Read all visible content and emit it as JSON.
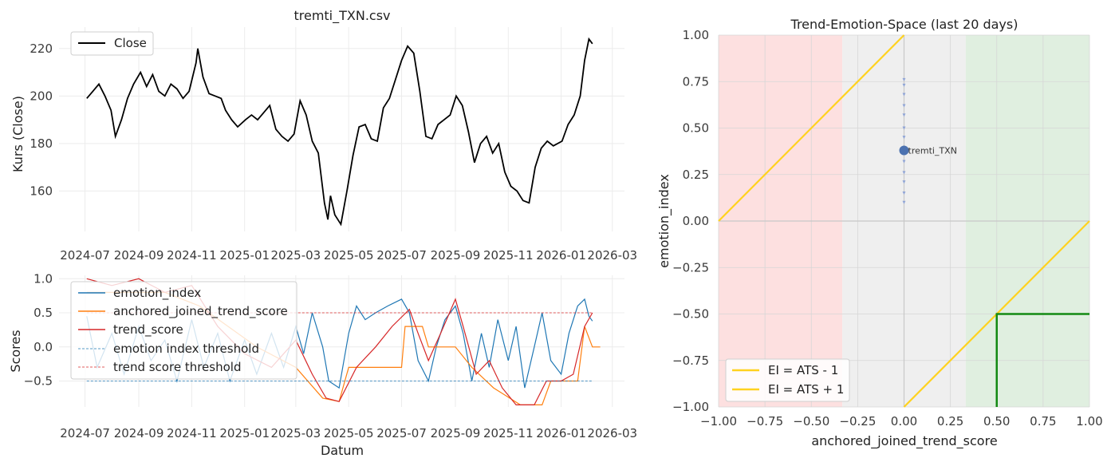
{
  "chart_data": [
    {
      "id": "price",
      "type": "line",
      "title": "tremti_TXN.csv",
      "xlabel": "",
      "ylabel": "Kurs (Close)",
      "x_range": [
        "2024-06-01",
        "2026-03-15"
      ],
      "ylim": [
        143,
        229
      ],
      "yticks": [
        "160",
        "180",
        "200",
        "220"
      ],
      "xticks": [
        "2024-07",
        "2024-09",
        "2024-11",
        "2025-01",
        "2025-03",
        "2025-05",
        "2025-07",
        "2025-09",
        "2025-11",
        "2026-01",
        "2026-03"
      ],
      "grid": true,
      "legend": "top-left",
      "series": [
        {
          "name": "Close",
          "color": "#000000",
          "points": [
            [
              "2024-07-03",
              199
            ],
            [
              "2024-07-10",
              202
            ],
            [
              "2024-07-17",
              205
            ],
            [
              "2024-07-24",
              200
            ],
            [
              "2024-07-31",
              194
            ],
            [
              "2024-08-05",
              183
            ],
            [
              "2024-08-12",
              190
            ],
            [
              "2024-08-19",
              199
            ],
            [
              "2024-08-26",
              205
            ],
            [
              "2024-09-03",
              210
            ],
            [
              "2024-09-10",
              204
            ],
            [
              "2024-09-17",
              209
            ],
            [
              "2024-09-24",
              202
            ],
            [
              "2024-10-01",
              200
            ],
            [
              "2024-10-08",
              205
            ],
            [
              "2024-10-15",
              203
            ],
            [
              "2024-10-22",
              199
            ],
            [
              "2024-10-29",
              202
            ],
            [
              "2024-11-06",
              214
            ],
            [
              "2024-11-08",
              220
            ],
            [
              "2024-11-14",
              208
            ],
            [
              "2024-11-21",
              201
            ],
            [
              "2024-11-28",
              200
            ],
            [
              "2024-12-05",
              199
            ],
            [
              "2024-12-10",
              194
            ],
            [
              "2024-12-17",
              190
            ],
            [
              "2024-12-24",
              187
            ],
            [
              "2025-01-02",
              190
            ],
            [
              "2025-01-09",
              192
            ],
            [
              "2025-01-16",
              190
            ],
            [
              "2025-01-23",
              193
            ],
            [
              "2025-01-30",
              196
            ],
            [
              "2025-02-06",
              186
            ],
            [
              "2025-02-13",
              183
            ],
            [
              "2025-02-20",
              181
            ],
            [
              "2025-02-27",
              184
            ],
            [
              "2025-03-06",
              198
            ],
            [
              "2025-03-13",
              192
            ],
            [
              "2025-03-20",
              181
            ],
            [
              "2025-03-27",
              176
            ],
            [
              "2025-04-03",
              155
            ],
            [
              "2025-04-07",
              148
            ],
            [
              "2025-04-10",
              158
            ],
            [
              "2025-04-15",
              150
            ],
            [
              "2025-04-22",
              146
            ],
            [
              "2025-04-29",
              160
            ],
            [
              "2025-05-06",
              175
            ],
            [
              "2025-05-13",
              187
            ],
            [
              "2025-05-20",
              188
            ],
            [
              "2025-05-27",
              182
            ],
            [
              "2025-06-03",
              181
            ],
            [
              "2025-06-10",
              195
            ],
            [
              "2025-06-17",
              199
            ],
            [
              "2025-06-24",
              207
            ],
            [
              "2025-07-01",
              215
            ],
            [
              "2025-07-08",
              221
            ],
            [
              "2025-07-15",
              218
            ],
            [
              "2025-07-22",
              202
            ],
            [
              "2025-07-29",
              183
            ],
            [
              "2025-08-05",
              182
            ],
            [
              "2025-08-12",
              188
            ],
            [
              "2025-08-19",
              190
            ],
            [
              "2025-08-26",
              192
            ],
            [
              "2025-09-02",
              200
            ],
            [
              "2025-09-09",
              196
            ],
            [
              "2025-09-16",
              185
            ],
            [
              "2025-09-23",
              172
            ],
            [
              "2025-09-30",
              180
            ],
            [
              "2025-10-07",
              183
            ],
            [
              "2025-10-14",
              176
            ],
            [
              "2025-10-21",
              180
            ],
            [
              "2025-10-28",
              168
            ],
            [
              "2025-11-04",
              162
            ],
            [
              "2025-11-11",
              160
            ],
            [
              "2025-11-18",
              156
            ],
            [
              "2025-11-25",
              155
            ],
            [
              "2025-12-02",
              170
            ],
            [
              "2025-12-09",
              178
            ],
            [
              "2025-12-16",
              181
            ],
            [
              "2025-12-23",
              179
            ],
            [
              "2026-01-02",
              181
            ],
            [
              "2026-01-09",
              188
            ],
            [
              "2026-01-16",
              192
            ],
            [
              "2026-01-23",
              200
            ],
            [
              "2026-01-28",
              215
            ],
            [
              "2026-02-02",
              224
            ],
            [
              "2026-02-06",
              222
            ]
          ]
        }
      ]
    },
    {
      "id": "scores",
      "type": "line",
      "title": "",
      "xlabel": "Datum",
      "ylabel": "Scores",
      "x_range": [
        "2024-06-01",
        "2026-03-15"
      ],
      "ylim": [
        -0.88,
        1.05
      ],
      "yticks": [
        "−0.5",
        "0.0",
        "0.5",
        "1.0"
      ],
      "ytick_values": [
        -0.5,
        0,
        0.5,
        1
      ],
      "xticks": [
        "2024-07",
        "2024-09",
        "2024-11",
        "2025-01",
        "2025-03",
        "2025-05",
        "2025-07",
        "2025-09",
        "2025-11",
        "2026-01",
        "2026-03"
      ],
      "grid": true,
      "legend": "top-left",
      "series": [
        {
          "name": "emotion_index",
          "color": "#1f77b4",
          "points": [
            [
              "2024-07-03",
              0.45
            ],
            [
              "2024-07-15",
              -0.3
            ],
            [
              "2024-08-01",
              0.2
            ],
            [
              "2024-08-15",
              -0.4
            ],
            [
              "2024-09-01",
              0.3
            ],
            [
              "2024-09-15",
              -0.2
            ],
            [
              "2024-10-01",
              0.1
            ],
            [
              "2024-10-15",
              -0.5
            ],
            [
              "2024-11-01",
              0.4
            ],
            [
              "2024-11-15",
              -0.3
            ],
            [
              "2024-12-01",
              0.2
            ],
            [
              "2024-12-15",
              -0.5
            ],
            [
              "2025-01-01",
              0.1
            ],
            [
              "2025-01-15",
              -0.4
            ],
            [
              "2025-02-01",
              0.2
            ],
            [
              "2025-02-15",
              -0.3
            ],
            [
              "2025-03-01",
              0.3
            ],
            [
              "2025-03-10",
              -0.1
            ],
            [
              "2025-03-20",
              0.5
            ],
            [
              "2025-04-01",
              0.0
            ],
            [
              "2025-04-08",
              -0.5
            ],
            [
              "2025-04-20",
              -0.6
            ],
            [
              "2025-05-01",
              0.2
            ],
            [
              "2025-05-10",
              0.6
            ],
            [
              "2025-05-20",
              0.4
            ],
            [
              "2025-06-01",
              0.5
            ],
            [
              "2025-06-15",
              0.6
            ],
            [
              "2025-07-01",
              0.7
            ],
            [
              "2025-07-10",
              0.5
            ],
            [
              "2025-07-20",
              -0.2
            ],
            [
              "2025-08-01",
              -0.5
            ],
            [
              "2025-08-10",
              0.0
            ],
            [
              "2025-08-20",
              0.4
            ],
            [
              "2025-09-01",
              0.6
            ],
            [
              "2025-09-10",
              0.2
            ],
            [
              "2025-09-20",
              -0.5
            ],
            [
              "2025-10-01",
              0.2
            ],
            [
              "2025-10-10",
              -0.3
            ],
            [
              "2025-10-20",
              0.4
            ],
            [
              "2025-11-01",
              -0.2
            ],
            [
              "2025-11-10",
              0.3
            ],
            [
              "2025-11-20",
              -0.6
            ],
            [
              "2025-12-01",
              0.0
            ],
            [
              "2025-12-10",
              0.5
            ],
            [
              "2025-12-20",
              -0.2
            ],
            [
              "2026-01-01",
              -0.4
            ],
            [
              "2026-01-10",
              0.2
            ],
            [
              "2026-01-20",
              0.6
            ],
            [
              "2026-01-28",
              0.7
            ],
            [
              "2026-02-02",
              0.45
            ],
            [
              "2026-02-06",
              0.38
            ]
          ]
        },
        {
          "name": "anchored_joined_trend_score",
          "color": "#ff7f0e",
          "points": [
            [
              "2024-07-03",
              0.8
            ],
            [
              "2024-10-01",
              0.8
            ],
            [
              "2024-11-10",
              0.6
            ],
            [
              "2025-01-15",
              0.0
            ],
            [
              "2025-03-01",
              -0.3
            ],
            [
              "2025-04-01",
              -0.75
            ],
            [
              "2025-04-20",
              -0.8
            ],
            [
              "2025-05-01",
              -0.3
            ],
            [
              "2025-05-10",
              -0.3
            ],
            [
              "2025-06-01",
              -0.3
            ],
            [
              "2025-07-01",
              -0.3
            ],
            [
              "2025-07-05",
              0.3
            ],
            [
              "2025-07-25",
              0.3
            ],
            [
              "2025-08-01",
              0.0
            ],
            [
              "2025-09-01",
              0.0
            ],
            [
              "2025-09-20",
              -0.3
            ],
            [
              "2025-10-15",
              -0.6
            ],
            [
              "2025-11-15",
              -0.85
            ],
            [
              "2025-12-10",
              -0.85
            ],
            [
              "2025-12-20",
              -0.5
            ],
            [
              "2026-01-20",
              -0.5
            ],
            [
              "2026-01-28",
              0.3
            ],
            [
              "2026-02-06",
              0.0
            ],
            [
              "2026-02-15",
              0.0
            ]
          ]
        },
        {
          "name": "trend_score",
          "color": "#d62728",
          "points": [
            [
              "2024-07-03",
              1.0
            ],
            [
              "2024-08-01",
              0.9
            ],
            [
              "2024-09-01",
              1.0
            ],
            [
              "2024-10-01",
              0.8
            ],
            [
              "2024-11-01",
              0.9
            ],
            [
              "2024-12-01",
              0.3
            ],
            [
              "2025-01-01",
              -0.1
            ],
            [
              "2025-02-01",
              -0.3
            ],
            [
              "2025-03-01",
              0.1
            ],
            [
              "2025-03-20",
              -0.4
            ],
            [
              "2025-04-05",
              -0.75
            ],
            [
              "2025-04-20",
              -0.8
            ],
            [
              "2025-05-10",
              -0.3
            ],
            [
              "2025-06-01",
              0.0
            ],
            [
              "2025-06-20",
              0.3
            ],
            [
              "2025-07-10",
              0.55
            ],
            [
              "2025-07-20",
              0.2
            ],
            [
              "2025-08-01",
              -0.2
            ],
            [
              "2025-08-15",
              0.2
            ],
            [
              "2025-09-01",
              0.7
            ],
            [
              "2025-09-10",
              0.3
            ],
            [
              "2025-09-25",
              -0.4
            ],
            [
              "2025-10-10",
              -0.2
            ],
            [
              "2025-10-25",
              -0.6
            ],
            [
              "2025-11-10",
              -0.85
            ],
            [
              "2025-12-01",
              -0.85
            ],
            [
              "2025-12-15",
              -0.5
            ],
            [
              "2026-01-01",
              -0.5
            ],
            [
              "2026-01-15",
              -0.4
            ],
            [
              "2026-01-28",
              0.3
            ],
            [
              "2026-02-06",
              0.5
            ]
          ]
        },
        {
          "name": "emotion index threshold",
          "color": "#1f77b4",
          "dashed": true,
          "points": [
            [
              "2024-07-03",
              -0.5
            ],
            [
              "2026-02-06",
              -0.5
            ]
          ]
        },
        {
          "name": "trend score threshold",
          "color": "#d62728",
          "dashed": true,
          "points": [
            [
              "2024-07-03",
              0.5
            ],
            [
              "2026-02-06",
              0.5
            ]
          ]
        }
      ]
    },
    {
      "id": "space",
      "type": "scatter",
      "title": "Trend-Emotion-Space (last 20 days)",
      "xlabel": "anchored_joined_trend_score",
      "ylabel": "emotion_index",
      "xlim": [
        -1,
        1
      ],
      "ylim": [
        -1,
        1
      ],
      "xticks": [
        "−1.00",
        "−0.75",
        "−0.50",
        "−0.25",
        "0.00",
        "0.25",
        "0.50",
        "0.75",
        "1.00"
      ],
      "yticks": [
        "−1.00",
        "−0.75",
        "−0.50",
        "−0.25",
        "0.00",
        "0.25",
        "0.50",
        "0.75",
        "1.00"
      ],
      "tick_values": [
        -1,
        -0.75,
        -0.5,
        -0.25,
        0,
        0.25,
        0.5,
        0.75,
        1
      ],
      "grid": true,
      "legend": "bottom-left",
      "regions": [
        {
          "x": [
            -1,
            -0.333
          ],
          "color": "#fde0e0"
        },
        {
          "x": [
            -0.333,
            0.333
          ],
          "color": "#efefef"
        },
        {
          "x": [
            0.333,
            1
          ],
          "color": "#e0efe0"
        }
      ],
      "lines": [
        {
          "name": "EI = ATS - 1",
          "color": "#ffd21f",
          "from": [
            0,
            -1
          ],
          "to": [
            1,
            0
          ]
        },
        {
          "name": "EI = ATS + 1",
          "color": "#ffd21f",
          "from": [
            -1,
            0
          ],
          "to": [
            0,
            1
          ]
        }
      ],
      "box": {
        "color": "#138a13",
        "points": [
          [
            0.5,
            -1
          ],
          [
            0.5,
            -0.5
          ],
          [
            1,
            -0.5
          ]
        ]
      },
      "trail": {
        "color": "#8fa4d6",
        "x": 0,
        "y": [
          0.1,
          0.15,
          0.21,
          0.26,
          0.32,
          0.38,
          0.45,
          0.5,
          0.57,
          0.62,
          0.68,
          0.73,
          0.76
        ]
      },
      "point": {
        "label": "tremti_TXN",
        "x": 0,
        "y": 0.38,
        "color": "#4c72b0"
      }
    }
  ]
}
